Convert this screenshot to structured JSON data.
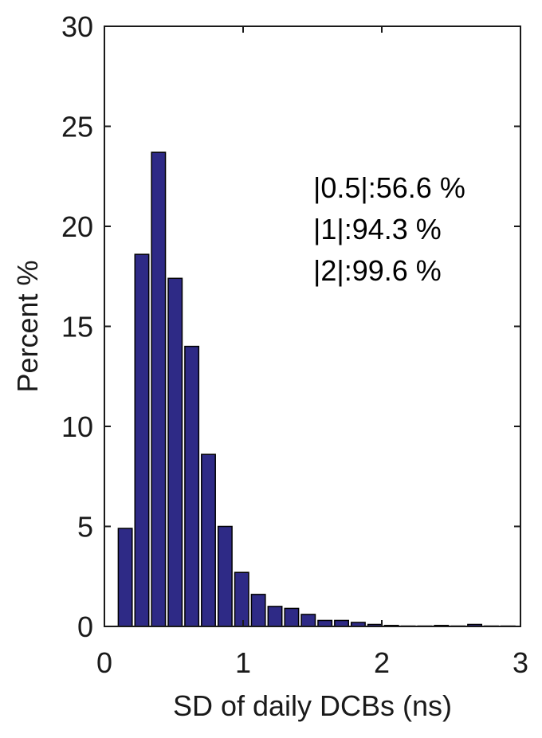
{
  "chart_data": {
    "type": "bar",
    "title": "",
    "xlabel": "SD of daily DCBs (ns)",
    "ylabel": "Percent %",
    "xlim": [
      0,
      3
    ],
    "ylim": [
      0,
      30
    ],
    "xticks": [
      "0",
      "1",
      "2",
      "3"
    ],
    "yticks": [
      "0",
      "5",
      "10",
      "15",
      "20",
      "25",
      "30"
    ],
    "bin_width": 0.1,
    "bar_color": "#2e2a86",
    "x": [
      0.15,
      0.27,
      0.39,
      0.51,
      0.63,
      0.75,
      0.87,
      0.99,
      1.11,
      1.23,
      1.35,
      1.47,
      1.59,
      1.71,
      1.83,
      1.95,
      2.07,
      2.19,
      2.31,
      2.43,
      2.55,
      2.67,
      2.79,
      2.91
    ],
    "values": [
      4.9,
      18.6,
      23.7,
      17.4,
      14.0,
      8.6,
      5.0,
      2.7,
      1.6,
      1.0,
      0.9,
      0.6,
      0.3,
      0.3,
      0.2,
      0.1,
      0.05,
      0.02,
      0.02,
      0.05,
      0.02,
      0.1,
      0.02,
      0.02
    ],
    "annotations": [
      "|0.5|:56.6 %",
      "|1|:94.3 %",
      "|2|:99.6 %"
    ],
    "grid": false,
    "legend": "none"
  }
}
